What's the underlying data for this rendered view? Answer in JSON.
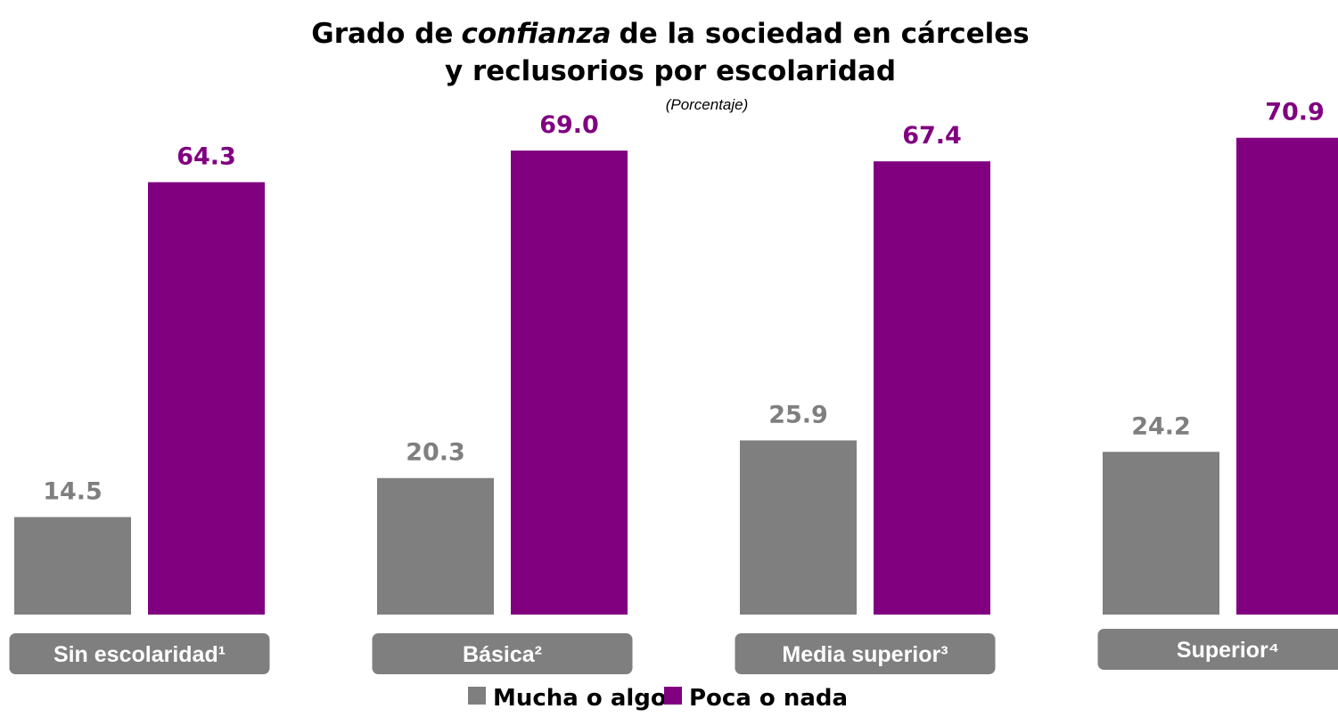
{
  "chart_data": {
    "type": "bar",
    "title": [
      "Grado de",
      "confianza",
      "de la sociedad en cárceles",
      "y reclusorios por escolaridad"
    ],
    "subtitle": "(Porcentaje)",
    "categories": [
      "Sin escolaridad¹",
      "Básica²",
      "Media superior³",
      "Superior⁴"
    ],
    "series": [
      {
        "name": "Mucha o algo",
        "color": "#7f7f7f",
        "values": [
          14.5,
          20.3,
          25.9,
          24.2
        ],
        "value_labels": [
          "14.5",
          "20.3",
          "25.9",
          "24.2"
        ]
      },
      {
        "name": "Poca o nada",
        "color": "#800080",
        "values": [
          64.3,
          69.0,
          67.4,
          70.9
        ],
        "value_labels": [
          "64.3",
          "69.0",
          "67.4",
          "70.9"
        ]
      }
    ],
    "ylim": [
      0,
      80
    ]
  }
}
